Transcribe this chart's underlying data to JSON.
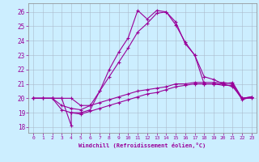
{
  "xlabel": "Windchill (Refroidissement éolien,°C)",
  "bg_color": "#cceeff",
  "line_color": "#990099",
  "grid_color": "#aabbcc",
  "x_ticks": [
    0,
    1,
    2,
    3,
    4,
    5,
    6,
    7,
    8,
    9,
    10,
    11,
    12,
    13,
    14,
    15,
    16,
    17,
    18,
    19,
    20,
    21,
    22,
    23
  ],
  "y_ticks": [
    18,
    19,
    20,
    21,
    22,
    23,
    24,
    25,
    26
  ],
  "xlim": [
    -0.5,
    23.5
  ],
  "ylim": [
    17.6,
    26.6
  ],
  "line1_x": [
    0,
    1,
    2,
    3,
    4,
    4,
    5,
    6,
    7,
    8,
    9,
    10,
    11,
    12,
    13,
    14,
    15,
    16,
    17,
    18,
    19,
    20,
    21,
    22,
    23
  ],
  "line1_y": [
    20,
    20,
    20,
    20,
    18.1,
    19,
    19,
    19.2,
    20.5,
    22,
    23.2,
    24.2,
    26.1,
    25.5,
    26.1,
    26.0,
    25.1,
    23.9,
    23.0,
    21.0,
    21.0,
    20.9,
    20.9,
    19.9,
    20.1
  ],
  "line2_x": [
    0,
    2,
    3,
    4,
    5,
    6,
    7,
    8,
    9,
    10,
    11,
    12,
    13,
    14,
    15,
    16,
    17,
    18,
    19,
    20,
    21,
    22,
    23
  ],
  "line2_y": [
    20,
    20,
    19.5,
    19.3,
    19.2,
    19.5,
    20.5,
    21.5,
    22.5,
    23.5,
    24.6,
    25.2,
    25.9,
    26.0,
    25.3,
    23.8,
    23.0,
    21.5,
    21.3,
    21.0,
    21.1,
    20.0,
    20.1
  ],
  "line3_x": [
    0,
    1,
    2,
    3,
    4,
    5,
    6,
    7,
    8,
    9,
    10,
    11,
    12,
    13,
    14,
    15,
    16,
    17,
    18,
    19,
    20,
    21,
    22,
    23
  ],
  "line3_y": [
    20,
    20,
    20,
    20,
    20,
    19.5,
    19.5,
    19.7,
    19.9,
    20.1,
    20.3,
    20.5,
    20.6,
    20.7,
    20.8,
    21.0,
    21.0,
    21.1,
    21.1,
    21.1,
    21.1,
    21.0,
    20.0,
    20.1
  ],
  "line4_x": [
    0,
    1,
    2,
    3,
    4,
    5,
    6,
    7,
    8,
    9,
    10,
    11,
    12,
    13,
    14,
    15,
    16,
    17,
    18,
    19,
    20,
    21,
    22,
    23
  ],
  "line4_y": [
    20,
    20,
    20,
    19.2,
    19.0,
    18.9,
    19.1,
    19.3,
    19.5,
    19.7,
    19.9,
    20.1,
    20.3,
    20.4,
    20.6,
    20.8,
    20.9,
    21.0,
    21.0,
    21.0,
    21.0,
    20.8,
    20.0,
    20.0
  ]
}
